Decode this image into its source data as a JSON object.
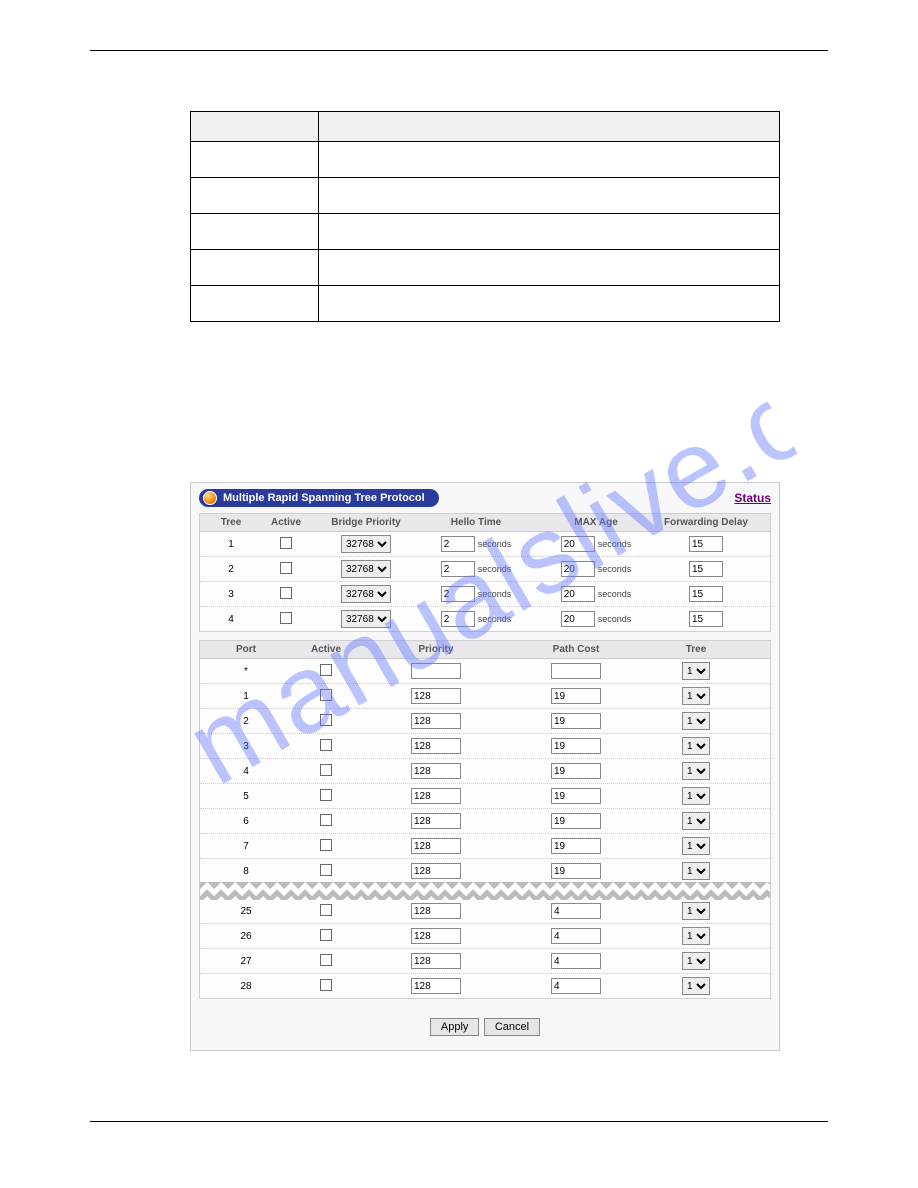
{
  "panel": {
    "title": "Multiple Rapid Spanning Tree Protocol",
    "status_link": "Status"
  },
  "tree_table": {
    "headers": {
      "tree": "Tree",
      "active": "Active",
      "bridge_priority": "Bridge Priority",
      "hello": "Hello Time",
      "max_age": "MAX Age",
      "fwd_delay": "Forwarding Delay"
    },
    "unit_seconds": "seconds",
    "bridge_priority_options": [
      "32768"
    ],
    "rows": [
      {
        "tree": "1",
        "bp": "32768",
        "hello": "2",
        "maxage": "20",
        "fd": "15"
      },
      {
        "tree": "2",
        "bp": "32768",
        "hello": "2",
        "maxage": "20",
        "fd": "15"
      },
      {
        "tree": "3",
        "bp": "32768",
        "hello": "2",
        "maxage": "20",
        "fd": "15"
      },
      {
        "tree": "4",
        "bp": "32768",
        "hello": "2",
        "maxage": "20",
        "fd": "15"
      }
    ]
  },
  "port_table": {
    "headers": {
      "port": "Port",
      "active": "Active",
      "priority": "Priority",
      "path_cost": "Path Cost",
      "tree": "Tree"
    },
    "tree_options": [
      "1"
    ],
    "rows_top": [
      {
        "port": "*",
        "priority": "",
        "pathcost": "",
        "tree": "1"
      },
      {
        "port": "1",
        "priority": "128",
        "pathcost": "19",
        "tree": "1"
      },
      {
        "port": "2",
        "priority": "128",
        "pathcost": "19",
        "tree": "1"
      },
      {
        "port": "3",
        "priority": "128",
        "pathcost": "19",
        "tree": "1"
      },
      {
        "port": "4",
        "priority": "128",
        "pathcost": "19",
        "tree": "1"
      },
      {
        "port": "5",
        "priority": "128",
        "pathcost": "19",
        "tree": "1"
      },
      {
        "port": "6",
        "priority": "128",
        "pathcost": "19",
        "tree": "1"
      },
      {
        "port": "7",
        "priority": "128",
        "pathcost": "19",
        "tree": "1"
      },
      {
        "port": "8",
        "priority": "128",
        "pathcost": "19",
        "tree": "1"
      }
    ],
    "rows_bottom": [
      {
        "port": "25",
        "priority": "128",
        "pathcost": "4",
        "tree": "1"
      },
      {
        "port": "26",
        "priority": "128",
        "pathcost": "4",
        "tree": "1"
      },
      {
        "port": "27",
        "priority": "128",
        "pathcost": "4",
        "tree": "1"
      },
      {
        "port": "28",
        "priority": "128",
        "pathcost": "4",
        "tree": "1"
      }
    ]
  },
  "buttons": {
    "apply": "Apply",
    "cancel": "Cancel"
  },
  "colors": {
    "title_bg": "#2a3b9e",
    "header_bg": "#e8e8ec",
    "panel_bg": "#f8f8fa",
    "status_color": "#6b006b",
    "watermark_color": "#6a7dff"
  }
}
